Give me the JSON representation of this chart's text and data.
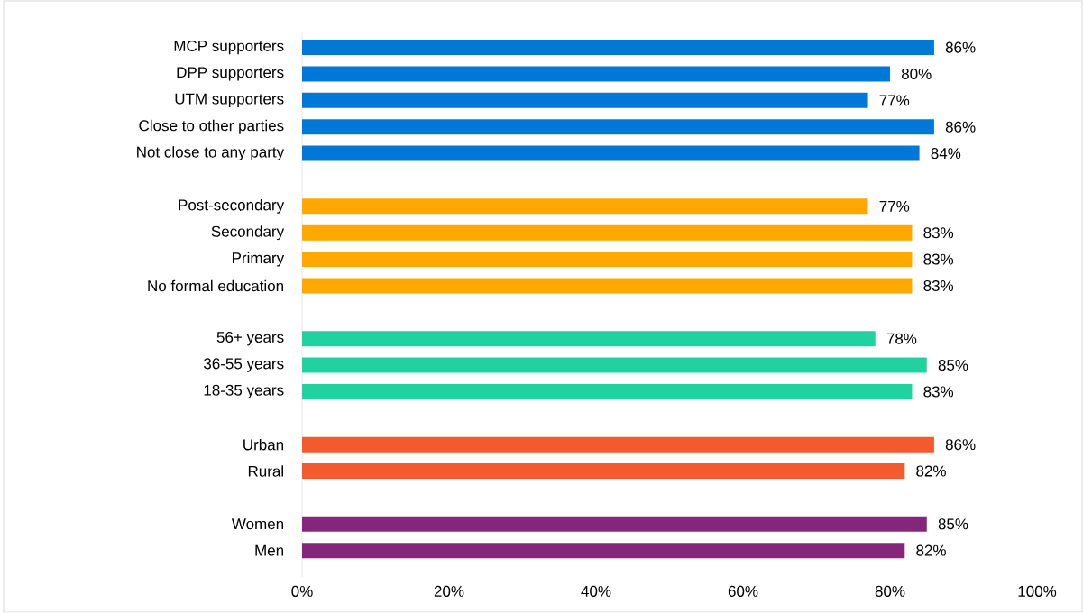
{
  "chart_data": {
    "type": "bar",
    "orientation": "horizontal",
    "categories": [
      "MCP supporters",
      "DPP supporters",
      "UTM supporters",
      "Close to other parties",
      "Not close to any party",
      null,
      "Post-secondary",
      "Secondary",
      "Primary",
      "No formal education",
      null,
      "56+ years",
      "36-55 years",
      "18-35 years",
      null,
      "Urban",
      "Rural",
      null,
      "Women",
      "Men"
    ],
    "values": [
      86,
      80,
      77,
      86,
      84,
      null,
      77,
      83,
      83,
      83,
      null,
      78,
      85,
      83,
      null,
      86,
      82,
      null,
      85,
      82
    ],
    "value_labels": [
      "86%",
      "80%",
      "77%",
      "86%",
      "84%",
      null,
      "77%",
      "83%",
      "83%",
      "83%",
      null,
      "78%",
      "85%",
      "83%",
      null,
      "86%",
      "82%",
      null,
      "85%",
      "82%"
    ],
    "colors": [
      "#0078d7",
      "#0078d7",
      "#0078d7",
      "#0078d7",
      "#0078d7",
      null,
      "#ffa800",
      "#ffa800",
      "#ffa800",
      "#ffa800",
      null,
      "#21d19f",
      "#21d19f",
      "#21d19f",
      null,
      "#f35a2c",
      "#f35a2c",
      null,
      "#84277a",
      "#84277a"
    ],
    "xlim": [
      0,
      100
    ],
    "xticks": [
      {
        "value": 0,
        "label": "0%"
      },
      {
        "value": 20,
        "label": "20%"
      },
      {
        "value": 40,
        "label": "40%"
      },
      {
        "value": 60,
        "label": "60%"
      },
      {
        "value": 80,
        "label": "80%"
      },
      {
        "value": 100,
        "label": "100%"
      }
    ]
  }
}
